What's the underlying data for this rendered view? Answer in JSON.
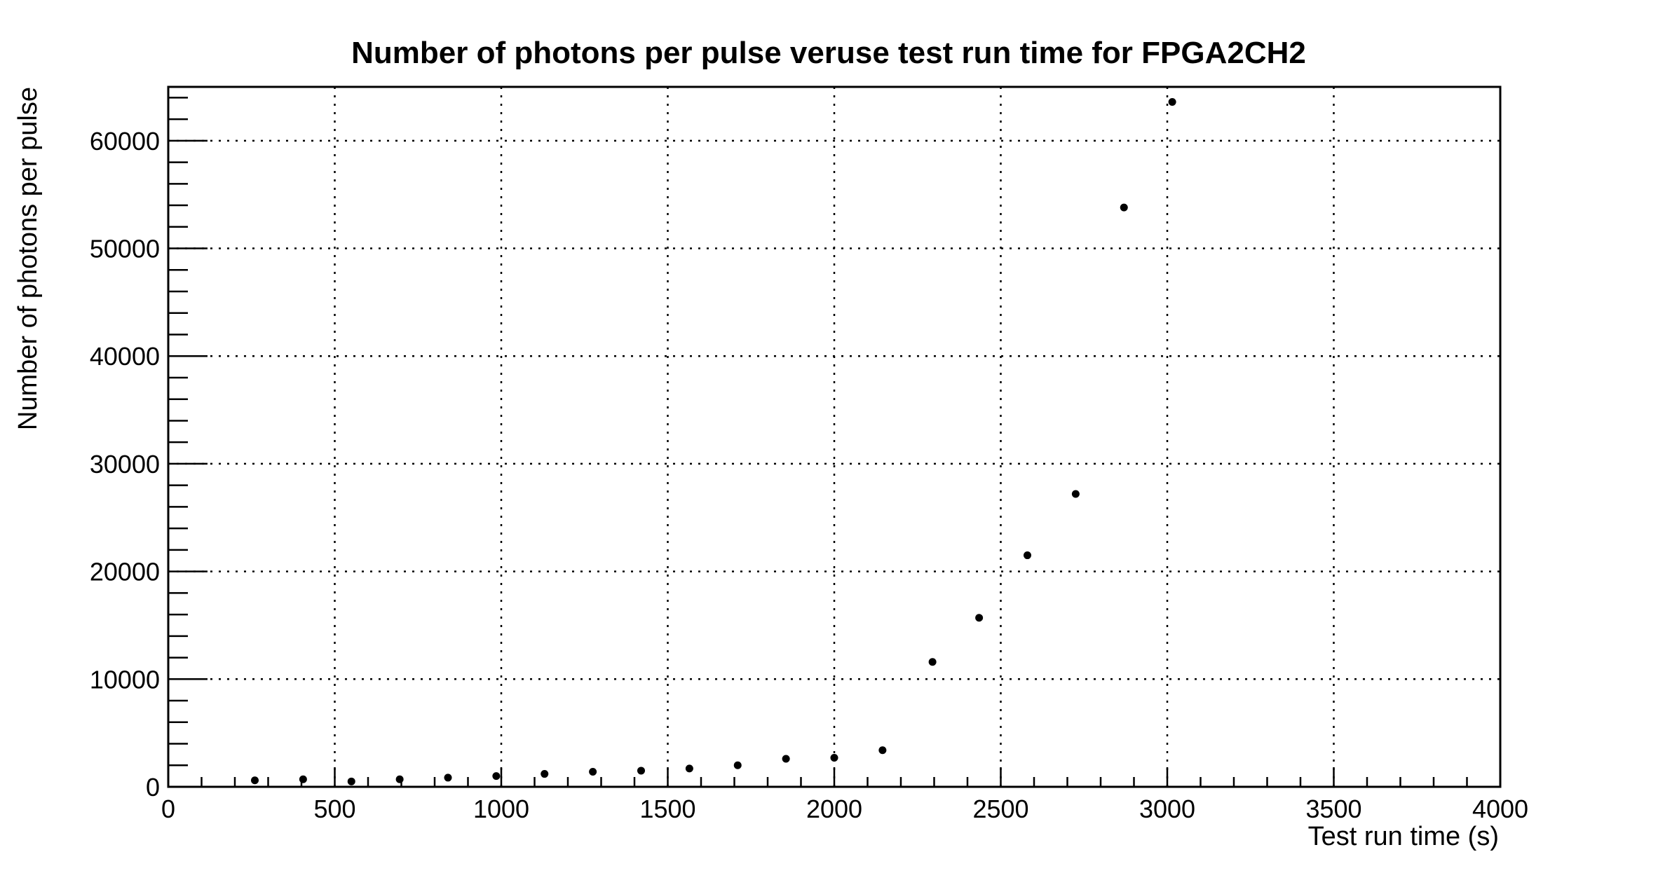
{
  "chart_data": {
    "type": "scatter",
    "title": "Number of photons per pulse veruse test run time for FPGA2CH2",
    "xlabel": "Test run time (s)",
    "ylabel": "Number of photons per pulse",
    "xlim": [
      0,
      4000
    ],
    "ylim": [
      0,
      65000
    ],
    "x_ticks": [
      "0",
      "500",
      "1000",
      "1500",
      "2000",
      "2500",
      "3000",
      "3500",
      "4000"
    ],
    "y_ticks": [
      "0",
      "10000",
      "20000",
      "30000",
      "40000",
      "50000",
      "60000"
    ],
    "grid": true,
    "legend": "none",
    "marker_color": "#000000",
    "points": [
      {
        "x": 260,
        "y": 600
      },
      {
        "x": 405,
        "y": 700
      },
      {
        "x": 550,
        "y": 500
      },
      {
        "x": 695,
        "y": 700
      },
      {
        "x": 840,
        "y": 850
      },
      {
        "x": 985,
        "y": 1000
      },
      {
        "x": 1130,
        "y": 1200
      },
      {
        "x": 1275,
        "y": 1400
      },
      {
        "x": 1420,
        "y": 1500
      },
      {
        "x": 1565,
        "y": 1700
      },
      {
        "x": 1710,
        "y": 2000
      },
      {
        "x": 1855,
        "y": 2600
      },
      {
        "x": 2000,
        "y": 2700
      },
      {
        "x": 2145,
        "y": 3400
      },
      {
        "x": 2295,
        "y": 11600
      },
      {
        "x": 2435,
        "y": 15700
      },
      {
        "x": 2580,
        "y": 21500
      },
      {
        "x": 2725,
        "y": 27200
      },
      {
        "x": 2870,
        "y": 53800
      },
      {
        "x": 3015,
        "y": 63600
      }
    ]
  }
}
